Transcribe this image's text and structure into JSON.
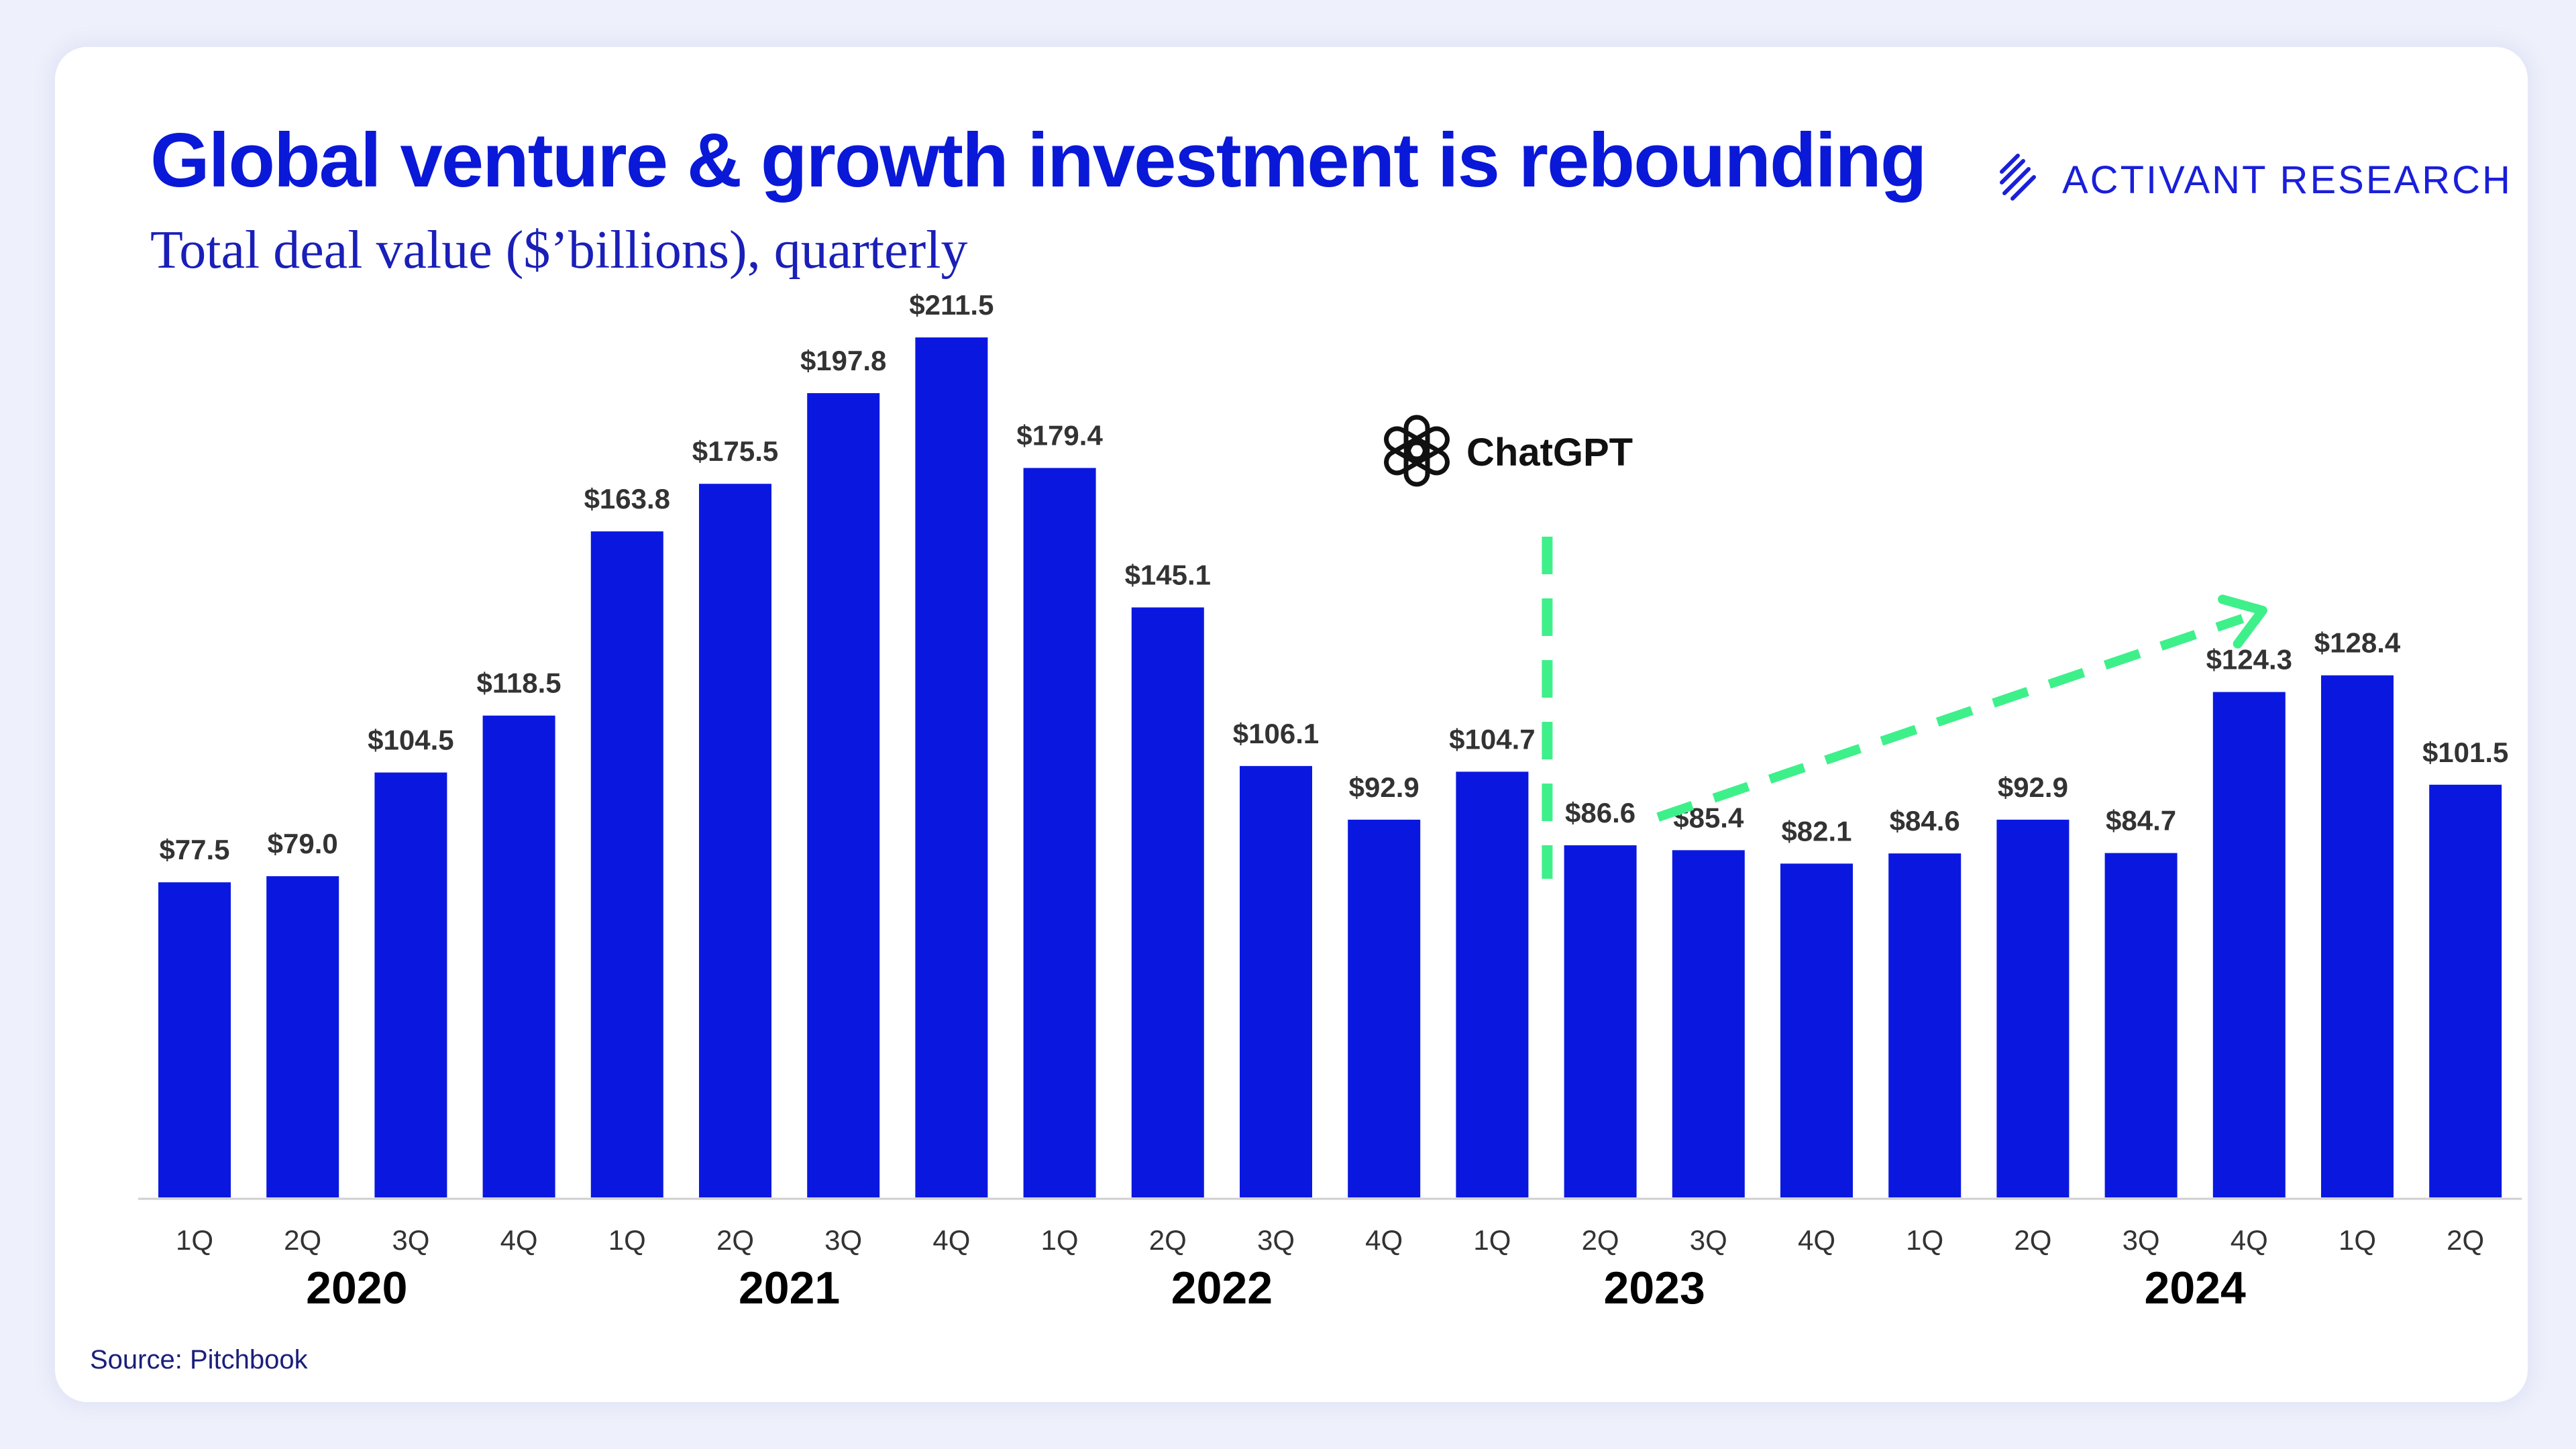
{
  "header": {
    "title": "Global venture & growth investment is rebounding",
    "subtitle": "Total deal value ($’billions), quarterly"
  },
  "brand": {
    "name": "ACTIVANT RESEARCH",
    "icon": "activant-chevrons-icon",
    "color": "#1a1fd8"
  },
  "source": "Source: Pitchbook",
  "annotation": {
    "label": "ChatGPT",
    "icon": "openai-logo-icon",
    "marker_after_index": 12,
    "color": "#3ef08a"
  },
  "trend_arrow": {
    "from_index": 13,
    "to_index": 19,
    "color": "#3ef08a"
  },
  "chart_data": {
    "type": "bar",
    "title": "Global venture & growth investment is rebounding",
    "subtitle": "Total deal value ($’billions), quarterly",
    "categories": [
      "1Q",
      "2Q",
      "3Q",
      "4Q",
      "1Q",
      "2Q",
      "3Q",
      "4Q",
      "1Q",
      "2Q",
      "3Q",
      "4Q",
      "1Q",
      "2Q",
      "3Q",
      "4Q",
      "1Q",
      "2Q",
      "3Q",
      "4Q",
      "1Q",
      "2Q"
    ],
    "values": [
      77.5,
      79.0,
      104.5,
      118.5,
      163.8,
      175.5,
      197.8,
      211.5,
      179.4,
      145.1,
      106.1,
      92.9,
      104.7,
      86.6,
      85.4,
      82.1,
      84.6,
      92.9,
      84.7,
      124.3,
      128.4,
      101.5
    ],
    "labels": [
      "$77.5",
      "$79.0",
      "$104.5",
      "$118.5",
      "$163.8",
      "$175.5",
      "$197.8",
      "$211.5",
      "$179.4",
      "$145.1",
      "$106.1",
      "$92.9",
      "$104.7",
      "$86.6",
      "$85.4",
      "$82.1",
      "$84.6",
      "$92.9",
      "$84.7",
      "$124.3",
      "$128.4",
      "$101.5"
    ],
    "years": [
      {
        "label": "2020",
        "start": 0,
        "end": 3
      },
      {
        "label": "2021",
        "start": 4,
        "end": 7
      },
      {
        "label": "2022",
        "start": 8,
        "end": 11
      },
      {
        "label": "2023",
        "start": 12,
        "end": 15
      },
      {
        "label": "2024",
        "start": 16,
        "end": 21
      }
    ],
    "bar_color": "#0a18df",
    "ylim": [
      0,
      211.5
    ],
    "grid": false,
    "legend": "none"
  }
}
